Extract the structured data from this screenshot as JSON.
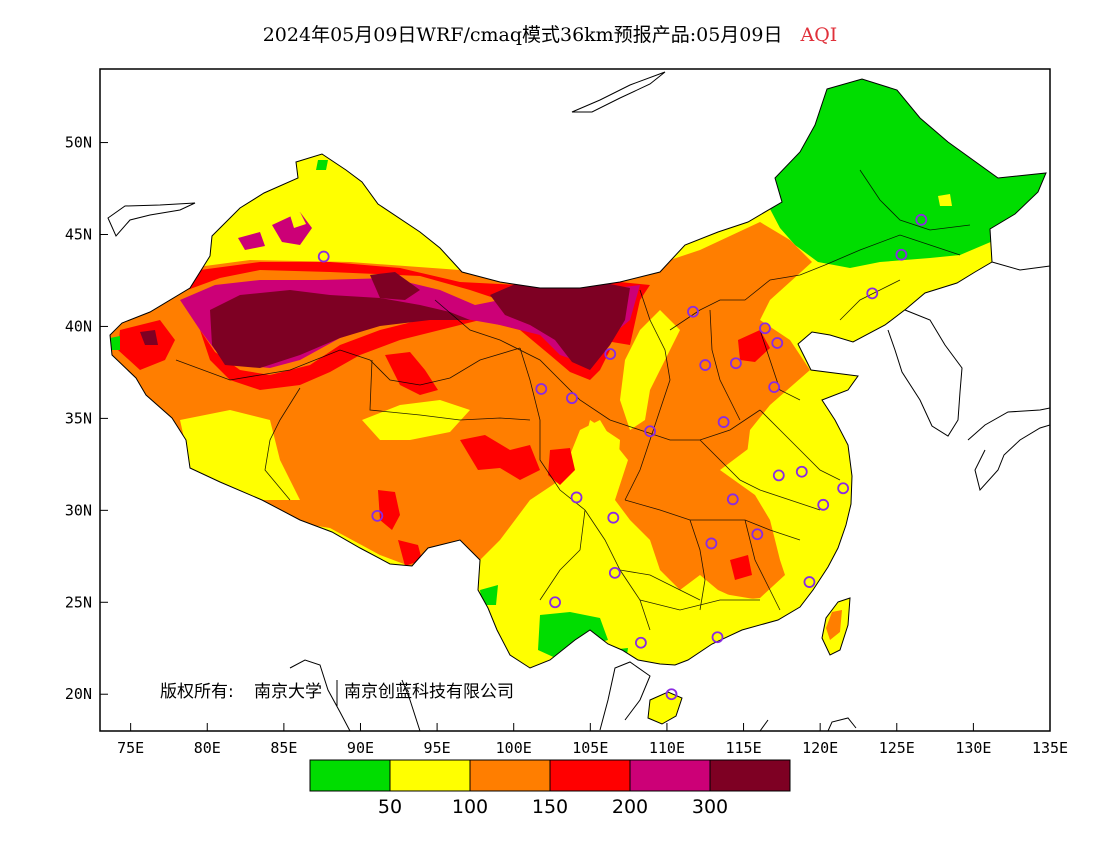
{
  "title": {
    "main": "2024年05月09日WRF/cmaq模式36km预报产品:05月09日",
    "variable": "AQI"
  },
  "axes": {
    "lat_labels": [
      "50N",
      "45N",
      "40N",
      "35N",
      "30N",
      "25N",
      "20N"
    ],
    "lat_values": [
      50,
      45,
      40,
      35,
      30,
      25,
      20
    ],
    "lon_labels": [
      "75E",
      "80E",
      "85E",
      "90E",
      "95E",
      "100E",
      "105E",
      "110E",
      "115E",
      "120E",
      "125E",
      "130E",
      "135E"
    ],
    "lon_values": [
      75,
      80,
      85,
      90,
      95,
      100,
      105,
      110,
      115,
      120,
      125,
      130,
      135
    ],
    "lon_range": [
      73,
      135
    ],
    "lat_range": [
      18,
      54
    ]
  },
  "copyright": {
    "prefix": "版权所有:",
    "org1": "南京大学",
    "org2": "南京创蓝科技有限公司"
  },
  "legend": {
    "colors": [
      "#00dd00",
      "#ffff00",
      "#ff7e00",
      "#ff0000",
      "#cc0077",
      "#7e0023"
    ],
    "labels": [
      "50",
      "100",
      "150",
      "200",
      "300"
    ]
  },
  "stations": [
    {
      "lon": 87.6,
      "lat": 43.8
    },
    {
      "lon": 91.1,
      "lat": 29.7
    },
    {
      "lon": 101.8,
      "lat": 36.6
    },
    {
      "lon": 103.8,
      "lat": 36.1
    },
    {
      "lon": 106.3,
      "lat": 38.5
    },
    {
      "lon": 104.1,
      "lat": 30.7
    },
    {
      "lon": 102.7,
      "lat": 25.0
    },
    {
      "lon": 106.6,
      "lat": 26.6
    },
    {
      "lon": 106.5,
      "lat": 29.6
    },
    {
      "lon": 108.9,
      "lat": 34.3
    },
    {
      "lon": 111.7,
      "lat": 40.8
    },
    {
      "lon": 112.5,
      "lat": 37.9
    },
    {
      "lon": 114.5,
      "lat": 38.0
    },
    {
      "lon": 116.4,
      "lat": 39.9
    },
    {
      "lon": 117.2,
      "lat": 39.1
    },
    {
      "lon": 117.0,
      "lat": 36.7
    },
    {
      "lon": 113.7,
      "lat": 34.8
    },
    {
      "lon": 114.3,
      "lat": 30.6
    },
    {
      "lon": 112.9,
      "lat": 28.2
    },
    {
      "lon": 115.9,
      "lat": 28.7
    },
    {
      "lon": 117.3,
      "lat": 31.9
    },
    {
      "lon": 118.8,
      "lat": 32.1
    },
    {
      "lon": 120.2,
      "lat": 30.3
    },
    {
      "lon": 121.5,
      "lat": 31.2
    },
    {
      "lon": 119.3,
      "lat": 26.1
    },
    {
      "lon": 113.3,
      "lat": 23.1
    },
    {
      "lon": 108.3,
      "lat": 22.8
    },
    {
      "lon": 110.3,
      "lat": 20.0
    },
    {
      "lon": 123.4,
      "lat": 41.8
    },
    {
      "lon": 125.3,
      "lat": 43.9
    },
    {
      "lon": 126.6,
      "lat": 45.8
    }
  ]
}
